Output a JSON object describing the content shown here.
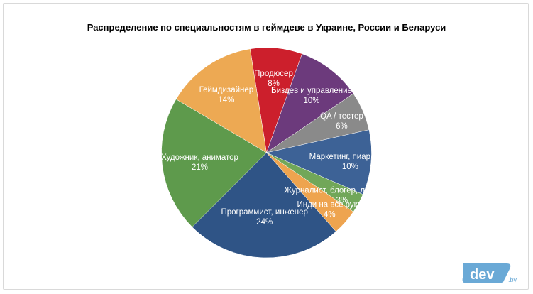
{
  "chart_data": {
    "type": "pie",
    "title": "Распределение по специальностям в геймдеве в Украине, России и Беларуси",
    "slices": [
      {
        "label": "Продюсер",
        "value": 8,
        "value_label": "8%",
        "color": "#cc1f2c"
      },
      {
        "label": "Биздев и управление",
        "value": 10,
        "value_label": "10%",
        "color": "#6c3a7c"
      },
      {
        "label": "QA / тестер",
        "value": 6,
        "value_label": "6%",
        "color": "#8a8a8a"
      },
      {
        "label": "Маркетинг, пиар и КМ",
        "value": 10,
        "value_label": "10%",
        "color": "#3d6296"
      },
      {
        "label": "Журналист, блогер, летсплеер",
        "value": 3,
        "value_label": "3%",
        "color": "#71a759"
      },
      {
        "label": "Инди на все руки",
        "value": 4,
        "value_label": "4%",
        "color": "#eea44f"
      },
      {
        "label": "Программист, инженер",
        "value": 24,
        "value_label": "24%",
        "color": "#2f5486"
      },
      {
        "label": "Художник, аниматор",
        "value": 21,
        "value_label": "21%",
        "color": "#5e9a4c"
      },
      {
        "label": "Геймдизайнер",
        "value": 14,
        "value_label": "14%",
        "color": "#eda953"
      }
    ]
  },
  "logo": {
    "text": "dev",
    "suffix": ".by",
    "color": "#6aa9d6"
  }
}
